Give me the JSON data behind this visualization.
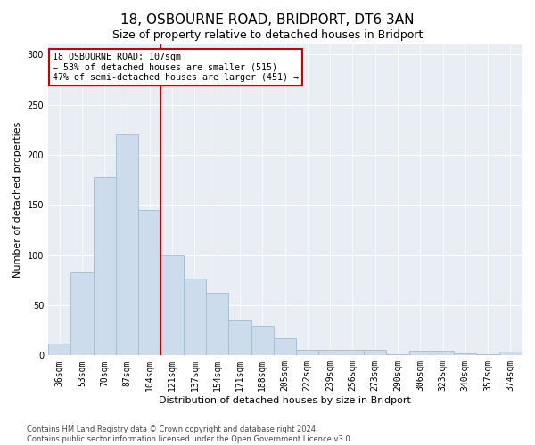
{
  "title": "18, OSBOURNE ROAD, BRIDPORT, DT6 3AN",
  "subtitle": "Size of property relative to detached houses in Bridport",
  "xlabel": "Distribution of detached houses by size in Bridport",
  "ylabel": "Number of detached properties",
  "categories": [
    "36sqm",
    "53sqm",
    "70sqm",
    "87sqm",
    "104sqm",
    "121sqm",
    "137sqm",
    "154sqm",
    "171sqm",
    "188sqm",
    "205sqm",
    "222sqm",
    "239sqm",
    "256sqm",
    "273sqm",
    "290sqm",
    "306sqm",
    "323sqm",
    "340sqm",
    "357sqm",
    "374sqm"
  ],
  "values": [
    12,
    83,
    178,
    220,
    145,
    100,
    77,
    62,
    35,
    30,
    17,
    6,
    6,
    6,
    6,
    1,
    5,
    5,
    2,
    1,
    4
  ],
  "bar_color": "#ccdcec",
  "bar_edge_color": "#a0bcd0",
  "annotation_text_line1": "18 OSBOURNE ROAD: 107sqm",
  "annotation_text_line2": "← 53% of detached houses are smaller (515)",
  "annotation_text_line3": "47% of semi-detached houses are larger (451) →",
  "annotation_box_facecolor": "#ffffff",
  "annotation_box_edgecolor": "#cc0000",
  "annotation_line_color": "#cc0000",
  "red_line_x": 4.5,
  "ylim": [
    0,
    310
  ],
  "yticks": [
    0,
    50,
    100,
    150,
    200,
    250,
    300
  ],
  "footnote1": "Contains HM Land Registry data © Crown copyright and database right 2024.",
  "footnote2": "Contains public sector information licensed under the Open Government Licence v3.0.",
  "bg_color": "#ffffff",
  "plot_bg_color": "#e8eef4",
  "grid_color": "#ffffff",
  "title_fontsize": 11,
  "subtitle_fontsize": 9,
  "axis_label_fontsize": 8,
  "tick_fontsize": 7,
  "footnote_fontsize": 6
}
